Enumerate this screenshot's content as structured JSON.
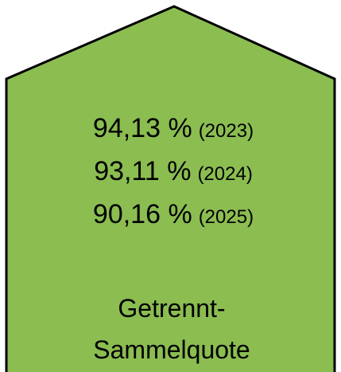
{
  "rates": [
    {
      "value": "94,13 %",
      "year": "(2023)"
    },
    {
      "value": "93,11 %",
      "year": "(2024)"
    },
    {
      "value": "90,16 %",
      "year": "(2025)"
    }
  ],
  "label": [
    "Getrennt-",
    "Sammelquote"
  ]
}
